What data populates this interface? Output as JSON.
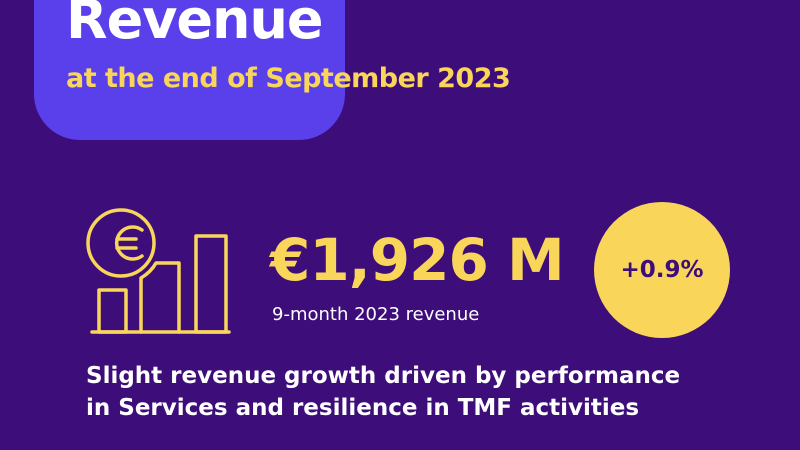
{
  "header": {
    "title": "Revenue",
    "subtitle": "at the end of September 2023"
  },
  "kpi": {
    "icon": "euro-bar-chart-icon",
    "value": "€1,926 M",
    "label": "9-month 2023 revenue",
    "growth": "+0.9%"
  },
  "description": {
    "line1": "Slight revenue growth driven by performance",
    "line2": "in Services and resilience in TMF activities"
  },
  "colors": {
    "background": "#3d0d7a",
    "header_box": "#5a40ea",
    "accent": "#f9d65a",
    "text": "#ffffff"
  }
}
